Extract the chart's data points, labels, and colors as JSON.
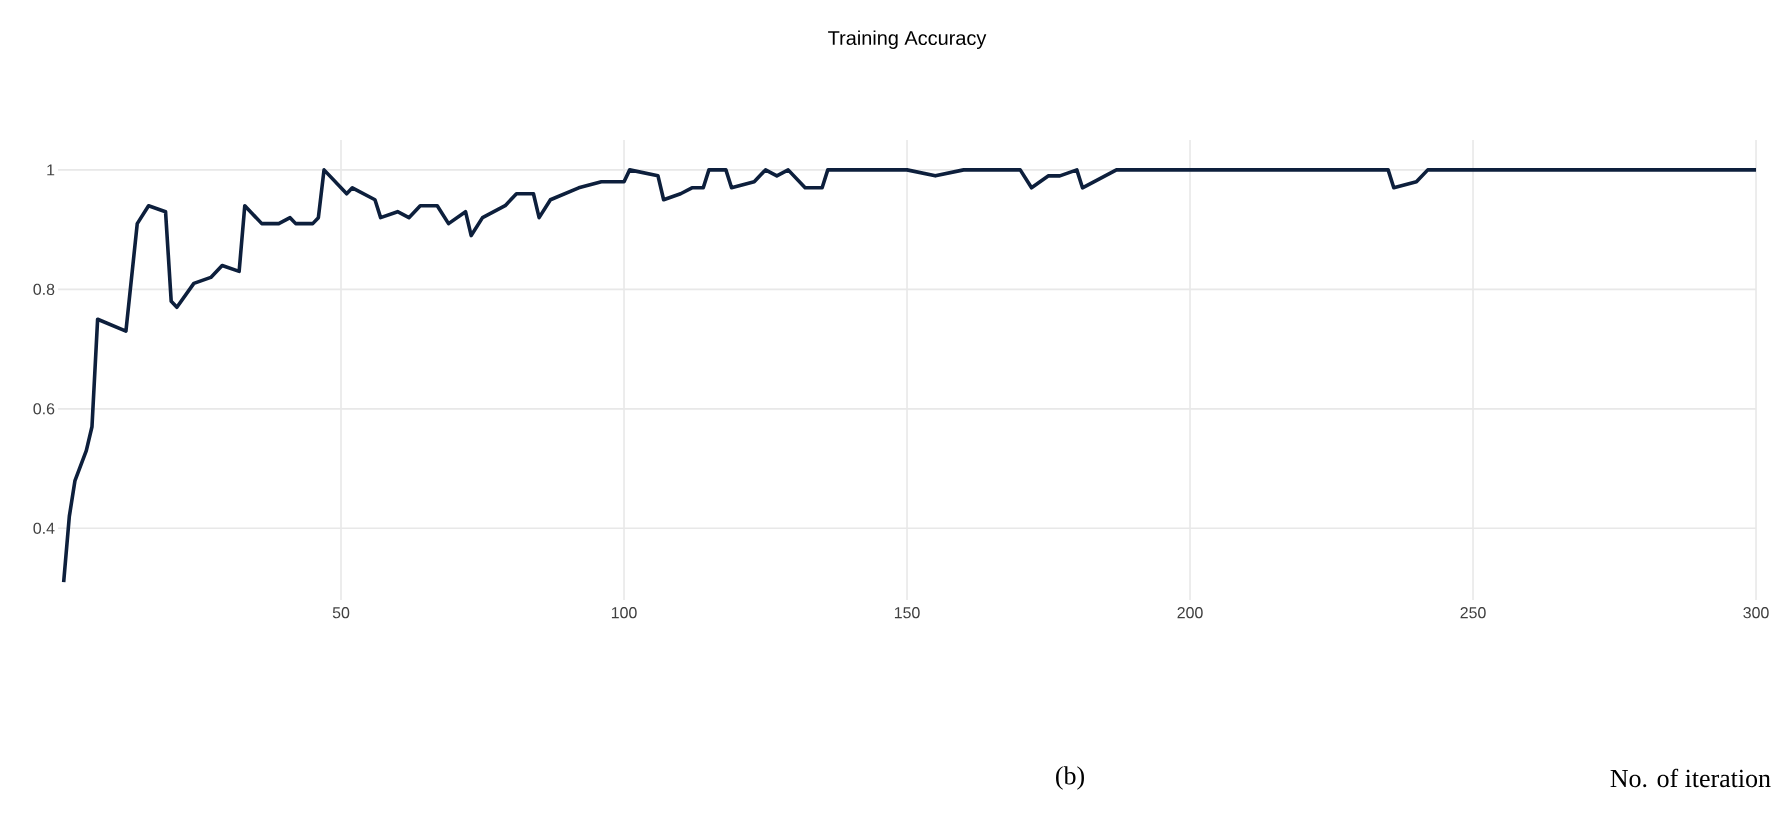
{
  "chart_data": {
    "type": "line",
    "title": "Training Accuracy",
    "annotations": [
      "(b)",
      "No. of iteration"
    ],
    "x": [
      1,
      2,
      3,
      5,
      6,
      7,
      12,
      14,
      16,
      19,
      20,
      21,
      24,
      27,
      29,
      32,
      33,
      36,
      39,
      41,
      42,
      45,
      46,
      47,
      51,
      52,
      56,
      57,
      60,
      62,
      64,
      67,
      69,
      72,
      73,
      75,
      79,
      81,
      84,
      85,
      87,
      92,
      96,
      100,
      101,
      106,
      107,
      110,
      112,
      114,
      115,
      118,
      119,
      123,
      125,
      127,
      129,
      132,
      135,
      136,
      140,
      150,
      155,
      160,
      170,
      172,
      175,
      177,
      180,
      181,
      183,
      187,
      200,
      235,
      236,
      240,
      242,
      300
    ],
    "series": [
      {
        "color": "#0d1f3c",
        "values": [
          0.31,
          0.42,
          0.48,
          0.53,
          0.57,
          0.75,
          0.73,
          0.91,
          0.94,
          0.93,
          0.78,
          0.77,
          0.81,
          0.82,
          0.84,
          0.83,
          0.94,
          0.91,
          0.91,
          0.92,
          0.91,
          0.91,
          0.92,
          1.0,
          0.96,
          0.97,
          0.95,
          0.92,
          0.93,
          0.92,
          0.94,
          0.94,
          0.91,
          0.93,
          0.89,
          0.92,
          0.94,
          0.96,
          0.96,
          0.92,
          0.95,
          0.97,
          0.98,
          0.98,
          1.0,
          0.99,
          0.95,
          0.96,
          0.97,
          0.97,
          1.0,
          1.0,
          0.97,
          0.98,
          1.0,
          0.99,
          1.0,
          0.97,
          0.97,
          1.0,
          1.0,
          1.0,
          0.99,
          1.0,
          1.0,
          0.97,
          0.99,
          0.99,
          1.0,
          0.97,
          0.98,
          1.0,
          1.0,
          1.0,
          0.97,
          0.98,
          1.0,
          1.0
        ]
      }
    ],
    "xlim": [
      0,
      300
    ],
    "ylim": [
      0.28,
      1.05
    ],
    "xticks": [
      50,
      100,
      150,
      200,
      250,
      300
    ],
    "yticks": [
      0.4,
      0.6,
      0.8,
      1
    ],
    "grid": true,
    "marker": "none",
    "line_style": "solid"
  }
}
